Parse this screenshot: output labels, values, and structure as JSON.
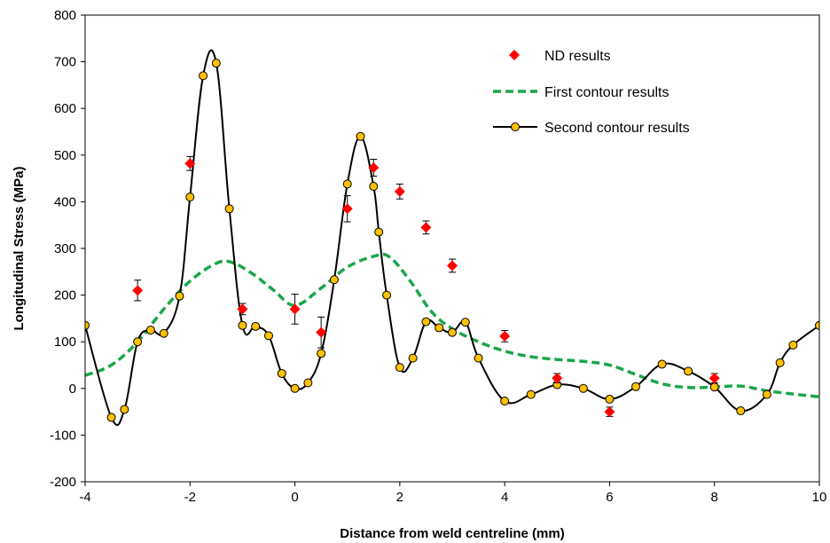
{
  "chart_data": {
    "type": "scatter",
    "xlabel": "Distance from weld centreline (mm)",
    "ylabel": "Longitudinal Stress (MPa)",
    "xlim": [
      -4,
      10
    ],
    "ylim": [
      -200,
      800
    ],
    "xticks": [
      "-4",
      "-2",
      "0",
      "2",
      "4",
      "6",
      "8",
      "10"
    ],
    "xtick_values": [
      -4,
      -2,
      0,
      2,
      4,
      6,
      8,
      10
    ],
    "yticks": [
      "-200",
      "-100",
      "0",
      "100",
      "200",
      "300",
      "400",
      "500",
      "600",
      "700",
      "800"
    ],
    "ytick_values": [
      -200,
      -100,
      0,
      100,
      200,
      300,
      400,
      500,
      600,
      700,
      800
    ],
    "grid": false,
    "legend_position": "top-right",
    "series": [
      {
        "name": "ND results",
        "style": "diamond-markers-with-error-bars",
        "color": "#ff0000",
        "x": [
          -3,
          -2,
          -1,
          0,
          0.5,
          1,
          1.5,
          2,
          2.5,
          3,
          4,
          5,
          6,
          8
        ],
        "y": [
          210,
          482,
          170,
          170,
          120,
          385,
          473,
          422,
          345,
          263,
          112,
          22,
          -50,
          22
        ],
        "yerr": [
          22,
          15,
          12,
          32,
          33,
          28,
          18,
          16,
          14,
          14,
          12,
          10,
          10,
          10
        ]
      },
      {
        "name": "First contour results",
        "style": "dashed-line",
        "color": "#1aa64b",
        "x": [
          -4,
          -3.5,
          -3,
          -2.5,
          -2,
          -1.5,
          -1.2,
          -0.8,
          -0.4,
          0,
          0.5,
          1,
          1.5,
          1.8,
          2.2,
          2.6,
          3,
          3.5,
          4,
          4.5,
          5,
          5.5,
          6,
          6.5,
          7,
          7.5,
          8,
          8.5,
          9,
          9.5,
          10
        ],
        "y": [
          28,
          50,
          100,
          170,
          230,
          268,
          270,
          245,
          210,
          178,
          215,
          260,
          283,
          282,
          230,
          165,
          128,
          100,
          80,
          68,
          62,
          58,
          50,
          30,
          10,
          2,
          3,
          5,
          -5,
          -12,
          -18
        ]
      },
      {
        "name": "Second contour results",
        "style": "line-with-circle-markers",
        "color": "#000000",
        "marker_color": "#ffc000",
        "x": [
          -4,
          -3.5,
          -3.25,
          -3,
          -2.75,
          -2.5,
          -2.2,
          -2,
          -1.75,
          -1.5,
          -1.25,
          -1,
          -0.75,
          -0.5,
          -0.25,
          0,
          0.25,
          0.5,
          0.75,
          1,
          1.25,
          1.5,
          1.6,
          1.75,
          2,
          2.25,
          2.5,
          2.75,
          3,
          3.25,
          3.5,
          4,
          4.5,
          5,
          5.5,
          6,
          6.5,
          7,
          7.5,
          8,
          8.5,
          9,
          9.25,
          9.5,
          10
        ],
        "y": [
          135,
          -62,
          -45,
          100,
          125,
          118,
          198,
          410,
          670,
          697,
          385,
          135,
          133,
          113,
          32,
          0,
          12,
          75,
          233,
          438,
          540,
          433,
          335,
          200,
          45,
          65,
          143,
          130,
          120,
          142,
          65,
          -27,
          -13,
          8,
          0,
          -23,
          4,
          52,
          37,
          3,
          -48,
          -13,
          55,
          93,
          135
        ]
      }
    ]
  }
}
